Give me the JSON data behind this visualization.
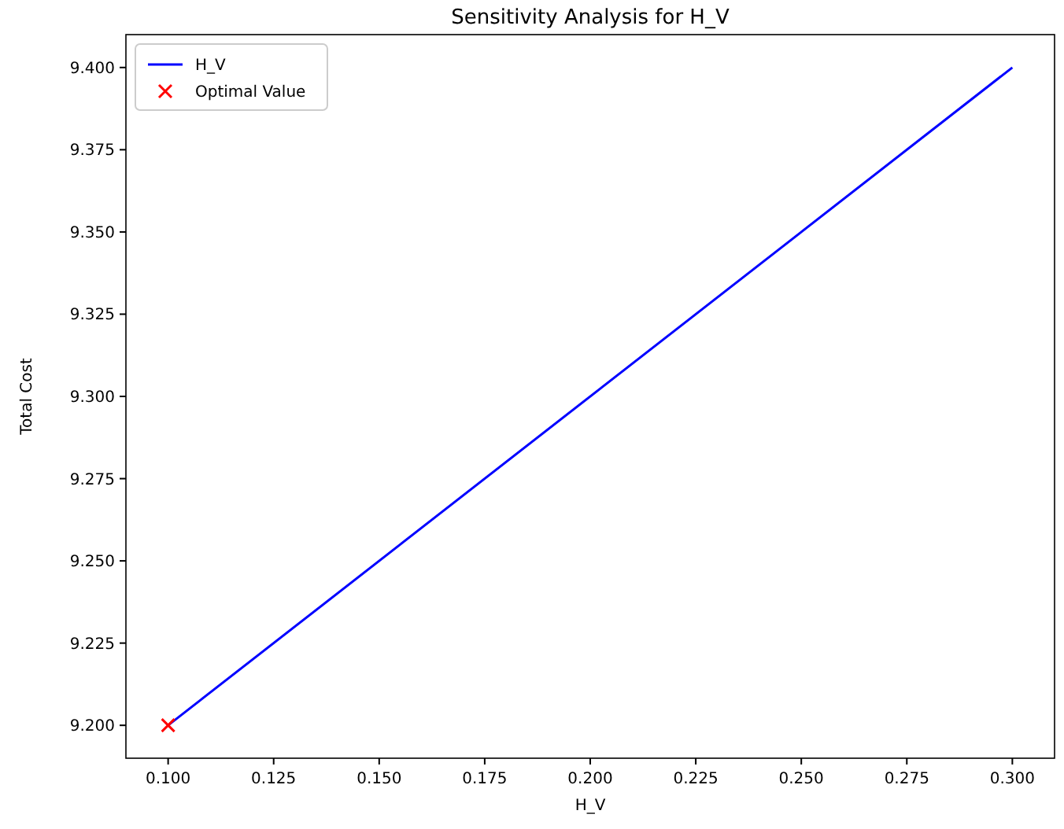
{
  "chart_data": {
    "type": "line",
    "title": "Sensitivity Analysis for H_V",
    "xlabel": "H_V",
    "ylabel": "Total Cost",
    "xlim": [
      0.09,
      0.31
    ],
    "xticks": [
      {
        "value": 0.1,
        "label": "0.100"
      },
      {
        "value": 0.125,
        "label": "0.125"
      },
      {
        "value": 0.15,
        "label": "0.150"
      },
      {
        "value": 0.175,
        "label": "0.175"
      },
      {
        "value": 0.2,
        "label": "0.200"
      },
      {
        "value": 0.225,
        "label": "0.225"
      },
      {
        "value": 0.25,
        "label": "0.250"
      },
      {
        "value": 0.275,
        "label": "0.275"
      },
      {
        "value": 0.3,
        "label": "0.300"
      }
    ],
    "ylim": [
      9.19,
      9.41
    ],
    "yticks": [
      {
        "value": 9.2,
        "label": "9.200"
      },
      {
        "value": 9.225,
        "label": "9.225"
      },
      {
        "value": 9.25,
        "label": "9.250"
      },
      {
        "value": 9.275,
        "label": "9.275"
      },
      {
        "value": 9.3,
        "label": "9.300"
      },
      {
        "value": 9.325,
        "label": "9.325"
      },
      {
        "value": 9.35,
        "label": "9.350"
      },
      {
        "value": 9.375,
        "label": "9.375"
      },
      {
        "value": 9.4,
        "label": "9.400"
      }
    ],
    "legend": "top left",
    "x": [
      0.1,
      0.3
    ],
    "grid": false,
    "series": [
      {
        "name": "H_V",
        "type": "line",
        "color": "#0000ff",
        "values": [
          9.2,
          9.4
        ],
        "line_style": "solid",
        "marker": "none"
      },
      {
        "name": "Optimal Value",
        "type": "scatter",
        "color": "#ff0000",
        "x": [
          0.1
        ],
        "values": [
          9.2
        ],
        "marker": "cross"
      }
    ]
  }
}
